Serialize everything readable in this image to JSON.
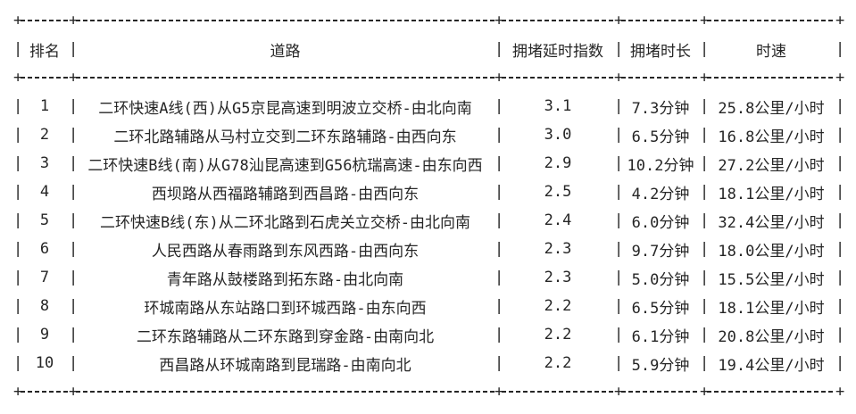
{
  "table": {
    "title_semantic": "traffic-congestion-ranking-table",
    "border": {
      "vertical": "|",
      "cross": "+"
    },
    "headers": {
      "rank": "排名",
      "road": "道路",
      "delay_index": "拥堵延时指数",
      "duration": "拥堵时长",
      "speed": "时速"
    },
    "rows": [
      {
        "rank": "1",
        "road": "二环快速A线(西)从G5京昆高速到明波立交桥-由北向南",
        "delay_index": "3.1",
        "duration": "7.3分钟",
        "speed": "25.8公里/小时"
      },
      {
        "rank": "2",
        "road": "二环北路辅路从马村立交到二环东路辅路-由西向东",
        "delay_index": "3.0",
        "duration": "6.5分钟",
        "speed": "16.8公里/小时"
      },
      {
        "rank": "3",
        "road": "二环快速B线(南)从G78汕昆高速到G56杭瑞高速-由东向西",
        "delay_index": "2.9",
        "duration": "10.2分钟",
        "speed": "27.2公里/小时"
      },
      {
        "rank": "4",
        "road": "西坝路从西福路辅路到西昌路-由西向东",
        "delay_index": "2.5",
        "duration": "4.2分钟",
        "speed": "18.1公里/小时"
      },
      {
        "rank": "5",
        "road": "二环快速B线(东)从二环北路到石虎关立交桥-由北向南",
        "delay_index": "2.4",
        "duration": "6.0分钟",
        "speed": "32.4公里/小时"
      },
      {
        "rank": "6",
        "road": "人民西路从春雨路到东风西路-由西向东",
        "delay_index": "2.3",
        "duration": "9.7分钟",
        "speed": "18.0公里/小时"
      },
      {
        "rank": "7",
        "road": "青年路从鼓楼路到拓东路-由北向南",
        "delay_index": "2.3",
        "duration": "5.0分钟",
        "speed": "15.5公里/小时"
      },
      {
        "rank": "8",
        "road": "环城南路从东站路口到环城西路-由东向西",
        "delay_index": "2.2",
        "duration": "6.5分钟",
        "speed": "18.1公里/小时"
      },
      {
        "rank": "9",
        "road": "二环东路辅路从二环东路到穿金路-由南向北",
        "delay_index": "2.2",
        "duration": "6.1分钟",
        "speed": "20.8公里/小时"
      },
      {
        "rank": "10",
        "road": "西昌路从环城南路到昆瑞路-由南向北",
        "delay_index": "2.2",
        "duration": "5.9分钟",
        "speed": "19.4公里/小时"
      }
    ]
  }
}
